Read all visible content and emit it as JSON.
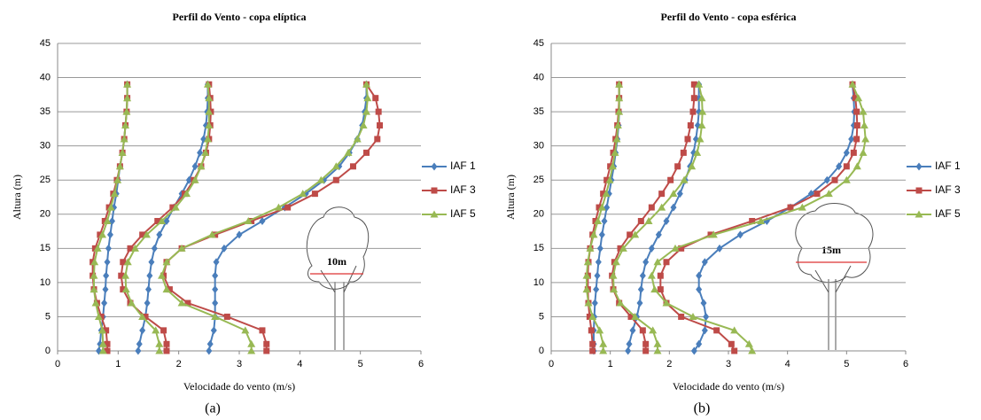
{
  "chart_data": [
    {
      "type": "line",
      "title": "Perfil do Vento  - copa elíptica",
      "xlabel": "Velocidade do vento (m/s)",
      "ylabel": "Altura (m)",
      "caption": "(a)",
      "annotation": "10m",
      "xlim": [
        0,
        6
      ],
      "xticks": [
        0,
        1,
        2,
        3,
        4,
        5,
        6
      ],
      "ylim": [
        0,
        45
      ],
      "yticks": [
        0,
        5,
        10,
        15,
        20,
        25,
        30,
        35,
        40,
        45
      ],
      "grid": true,
      "y": [
        0,
        1,
        3,
        5,
        7,
        9,
        11,
        13,
        15,
        17,
        19,
        21,
        23,
        25,
        27,
        29,
        31,
        33,
        35,
        37,
        39
      ],
      "series": [
        {
          "name": "IAF 1",
          "color": "#4a7ebb",
          "marker": "diamond",
          "values": [
            [
              0.68,
              0.7,
              0.72,
              0.75,
              0.77,
              0.79,
              0.8,
              0.82,
              0.84,
              0.87,
              0.9,
              0.93,
              0.97,
              1.0,
              1.03,
              1.07,
              1.1,
              1.12,
              1.14,
              1.15,
              1.15
            ],
            [
              1.33,
              1.35,
              1.4,
              1.45,
              1.48,
              1.5,
              1.52,
              1.55,
              1.6,
              1.68,
              1.8,
              1.92,
              2.05,
              2.17,
              2.27,
              2.35,
              2.41,
              2.45,
              2.47,
              2.48,
              2.48
            ],
            [
              2.5,
              2.52,
              2.58,
              2.6,
              2.6,
              2.6,
              2.6,
              2.62,
              2.75,
              3.0,
              3.38,
              3.75,
              4.1,
              4.4,
              4.65,
              4.82,
              4.95,
              5.03,
              5.07,
              5.1,
              5.1
            ]
          ]
        },
        {
          "name": "IAF 3",
          "color": "#be4b48",
          "marker": "square",
          "values": [
            [
              0.82,
              0.82,
              0.8,
              0.72,
              0.65,
              0.6,
              0.58,
              0.58,
              0.62,
              0.7,
              0.78,
              0.85,
              0.92,
              0.98,
              1.03,
              1.07,
              1.1,
              1.12,
              1.14,
              1.15,
              1.15
            ],
            [
              1.8,
              1.8,
              1.75,
              1.45,
              1.2,
              1.08,
              1.05,
              1.08,
              1.2,
              1.4,
              1.65,
              1.9,
              2.1,
              2.25,
              2.37,
              2.45,
              2.5,
              2.52,
              2.53,
              2.52,
              2.5
            ],
            [
              3.45,
              3.45,
              3.38,
              2.8,
              2.15,
              1.85,
              1.75,
              1.8,
              2.05,
              2.6,
              3.2,
              3.8,
              4.25,
              4.6,
              4.88,
              5.1,
              5.28,
              5.32,
              5.3,
              5.25,
              5.1
            ]
          ]
        },
        {
          "name": "IAF 5",
          "color": "#98b954",
          "marker": "triangle",
          "values": [
            [
              0.75,
              0.75,
              0.74,
              0.68,
              0.63,
              0.6,
              0.6,
              0.61,
              0.66,
              0.74,
              0.82,
              0.88,
              0.94,
              0.99,
              1.03,
              1.07,
              1.1,
              1.12,
              1.14,
              1.15,
              1.15
            ],
            [
              1.68,
              1.68,
              1.62,
              1.4,
              1.22,
              1.13,
              1.12,
              1.16,
              1.28,
              1.47,
              1.72,
              1.95,
              2.13,
              2.27,
              2.37,
              2.44,
              2.48,
              2.5,
              2.5,
              2.5,
              2.48
            ],
            [
              3.2,
              3.2,
              3.1,
              2.6,
              2.05,
              1.8,
              1.72,
              1.8,
              2.05,
              2.55,
              3.15,
              3.65,
              4.05,
              4.35,
              4.6,
              4.8,
              4.95,
              5.05,
              5.1,
              5.12,
              5.1
            ]
          ]
        }
      ]
    },
    {
      "type": "line",
      "title": "Perfil do Vento  - copa esférica",
      "xlabel": "Velocidade do vento (m/s)",
      "ylabel": "Altura (m)",
      "caption": "(b)",
      "annotation": "15m",
      "xlim": [
        0,
        6
      ],
      "xticks": [
        0,
        1,
        2,
        3,
        4,
        5,
        6
      ],
      "ylim": [
        0,
        45
      ],
      "yticks": [
        0,
        5,
        10,
        15,
        20,
        25,
        30,
        35,
        40,
        45
      ],
      "grid": true,
      "y": [
        0,
        1,
        3,
        5,
        7,
        9,
        11,
        13,
        15,
        17,
        19,
        21,
        23,
        25,
        27,
        29,
        31,
        33,
        35,
        37,
        39
      ],
      "series": [
        {
          "name": "IAF 1",
          "color": "#4a7ebb",
          "marker": "diamond",
          "values": [
            [
              0.72,
              0.72,
              0.72,
              0.73,
              0.74,
              0.76,
              0.78,
              0.8,
              0.83,
              0.86,
              0.9,
              0.94,
              0.98,
              1.02,
              1.06,
              1.09,
              1.12,
              1.14,
              1.15,
              1.15,
              1.15
            ],
            [
              1.3,
              1.32,
              1.38,
              1.45,
              1.5,
              1.52,
              1.55,
              1.6,
              1.7,
              1.82,
              1.95,
              2.07,
              2.18,
              2.27,
              2.35,
              2.41,
              2.45,
              2.48,
              2.5,
              2.5,
              2.5
            ],
            [
              2.42,
              2.5,
              2.6,
              2.62,
              2.58,
              2.5,
              2.5,
              2.6,
              2.85,
              3.2,
              3.65,
              4.05,
              4.4,
              4.67,
              4.87,
              5.0,
              5.08,
              5.12,
              5.13,
              5.12,
              5.1
            ]
          ]
        },
        {
          "name": "IAF 3",
          "color": "#be4b48",
          "marker": "square",
          "values": [
            [
              0.7,
              0.7,
              0.68,
              0.65,
              0.63,
              0.62,
              0.62,
              0.63,
              0.66,
              0.7,
              0.75,
              0.81,
              0.88,
              0.94,
              1.0,
              1.05,
              1.09,
              1.12,
              1.14,
              1.15,
              1.15
            ],
            [
              1.6,
              1.6,
              1.55,
              1.35,
              1.15,
              1.05,
              1.03,
              1.07,
              1.17,
              1.33,
              1.52,
              1.7,
              1.87,
              2.02,
              2.14,
              2.24,
              2.31,
              2.36,
              2.4,
              2.42,
              2.42
            ],
            [
              3.1,
              3.05,
              2.8,
              2.2,
              1.95,
              1.85,
              1.85,
              1.95,
              2.2,
              2.7,
              3.4,
              4.05,
              4.5,
              4.8,
              5.0,
              5.12,
              5.17,
              5.18,
              5.17,
              5.15,
              5.1
            ]
          ]
        },
        {
          "name": "IAF 5",
          "color": "#98b954",
          "marker": "triangle",
          "values": [
            [
              0.88,
              0.88,
              0.82,
              0.7,
              0.63,
              0.6,
              0.6,
              0.62,
              0.66,
              0.72,
              0.79,
              0.86,
              0.93,
              0.99,
              1.04,
              1.08,
              1.11,
              1.13,
              1.15,
              1.15,
              1.15
            ],
            [
              1.8,
              1.8,
              1.72,
              1.42,
              1.17,
              1.06,
              1.05,
              1.1,
              1.22,
              1.42,
              1.65,
              1.87,
              2.07,
              2.25,
              2.38,
              2.47,
              2.52,
              2.55,
              2.56,
              2.55,
              2.5
            ],
            [
              3.4,
              3.35,
              3.1,
              2.4,
              1.95,
              1.75,
              1.7,
              1.8,
              2.1,
              2.75,
              3.55,
              4.25,
              4.7,
              5.0,
              5.18,
              5.28,
              5.32,
              5.3,
              5.28,
              5.2,
              5.1
            ]
          ]
        }
      ]
    }
  ]
}
